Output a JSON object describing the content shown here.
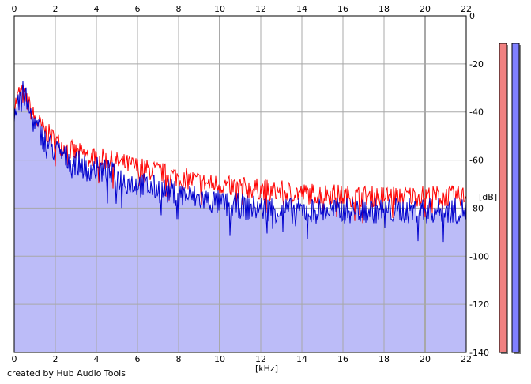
{
  "chart_data": {
    "type": "area",
    "xlabel": "[kHz]",
    "ylabel": "[dB]",
    "xlim": [
      0,
      22
    ],
    "ylim": [
      -140,
      0
    ],
    "x_ticks": [
      0,
      2,
      4,
      6,
      8,
      10,
      12,
      14,
      16,
      18,
      20,
      22
    ],
    "y_ticks": [
      0,
      -20,
      -40,
      -60,
      -80,
      -100,
      -120,
      -140
    ],
    "grid": true,
    "series": [
      {
        "color": "#ff0000",
        "x": [
          0,
          0.25,
          0.5,
          0.75,
          1,
          1.5,
          2,
          2.5,
          3,
          3.5,
          4,
          4.5,
          5,
          5.5,
          6,
          6.5,
          7,
          7.5,
          8,
          8.5,
          9,
          9.5,
          10,
          10.5,
          11,
          11.5,
          12,
          12.5,
          13,
          13.5,
          14,
          14.5,
          15,
          15.5,
          16,
          16.5,
          17,
          17.5,
          18,
          18.5,
          19,
          19.5,
          20,
          20.5,
          21,
          21.5,
          22
        ],
        "values": [
          -38,
          -32,
          -33,
          -38,
          -43,
          -48,
          -52,
          -55,
          -57,
          -58,
          -59,
          -60,
          -61,
          -62,
          -63,
          -64,
          -65,
          -66,
          -67,
          -68,
          -69,
          -70,
          -70,
          -71,
          -71,
          -72,
          -72,
          -73,
          -73,
          -73,
          -74,
          -74,
          -74,
          -74,
          -75,
          -75,
          -75,
          -75,
          -75,
          -75,
          -75,
          -75,
          -75,
          -75,
          -75,
          -75,
          -75
        ]
      },
      {
        "color": "#0000cc",
        "x": [
          0,
          0.25,
          0.5,
          0.75,
          1,
          1.5,
          2,
          2.5,
          3,
          3.5,
          4,
          4.5,
          5,
          5.5,
          6,
          6.5,
          7,
          7.5,
          8,
          8.5,
          9,
          9.5,
          10,
          10.5,
          11,
          11.5,
          12,
          12.5,
          13,
          13.5,
          14,
          14.5,
          15,
          15.5,
          16,
          16.5,
          17,
          17.5,
          18,
          18.5,
          19,
          19.5,
          20,
          20.5,
          21,
          21.5,
          22
        ],
        "values": [
          -40,
          -31,
          -33,
          -40,
          -45,
          -52,
          -56,
          -59,
          -61,
          -63,
          -64,
          -65,
          -67,
          -69,
          -70,
          -71,
          -72,
          -73,
          -74,
          -75,
          -76,
          -77,
          -78,
          -79,
          -79,
          -80,
          -80,
          -80,
          -81,
          -81,
          -81,
          -81,
          -81,
          -81,
          -81,
          -81,
          -81,
          -81,
          -81,
          -81,
          -81,
          -81,
          -81,
          -81,
          -81,
          -81,
          -81
        ]
      }
    ]
  },
  "level_meters": [
    {
      "color": "#f08080"
    },
    {
      "color": "#8080ff"
    }
  ],
  "footer": "created by Hub Audio Tools",
  "colors": {
    "fill": "#bcbcf8",
    "grid": "#a8a8a8"
  }
}
